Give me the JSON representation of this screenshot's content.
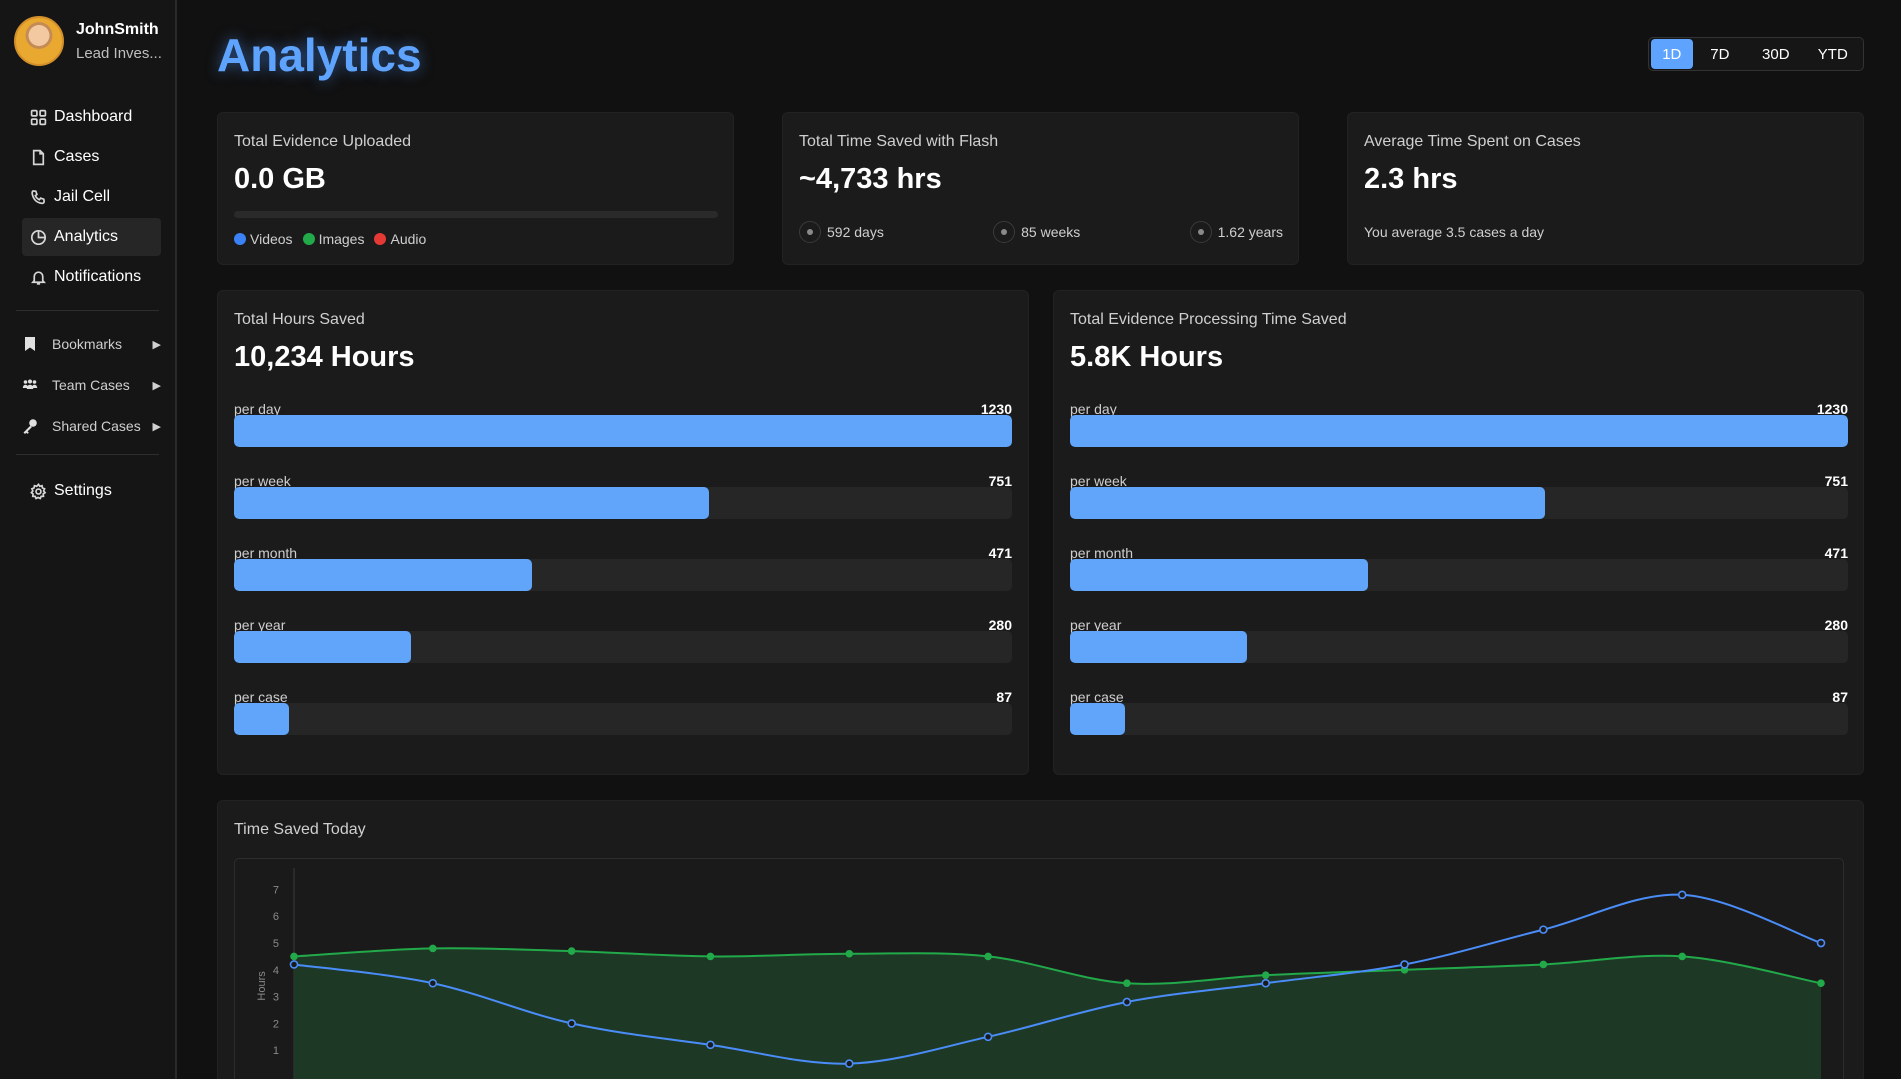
{
  "profile": {
    "name": "JohnSmith",
    "role": "Lead Inves..."
  },
  "nav": [
    {
      "label": "Dashboard",
      "icon": "grid-icon"
    },
    {
      "label": "Cases",
      "icon": "document-icon"
    },
    {
      "label": "Jail Cell",
      "icon": "phone-icon"
    },
    {
      "label": "Analytics",
      "icon": "pie-chart-icon",
      "active": true
    },
    {
      "label": "Notifications",
      "icon": "bell-icon"
    }
  ],
  "groups": [
    {
      "label": "Bookmarks",
      "icon": "bookmark-icon"
    },
    {
      "label": "Team Cases",
      "icon": "team-icon"
    },
    {
      "label": "Shared Cases",
      "icon": "key-icon"
    }
  ],
  "settings": {
    "label": "Settings",
    "icon": "gear-icon"
  },
  "page_title": "Analytics",
  "ranges": {
    "options": [
      "1D",
      "7D",
      "30D",
      "YTD"
    ],
    "selected": "1D"
  },
  "cards": {
    "evidence": {
      "title": "Total Evidence Uploaded",
      "value": "0.0 GB",
      "progress": 0,
      "legend": [
        {
          "label": "Videos",
          "color": "#3b82f6"
        },
        {
          "label": "Images",
          "color": "#22a94a"
        },
        {
          "label": "Audio",
          "color": "#e53935"
        }
      ]
    },
    "time_saved": {
      "title": "Total Time Saved with Flash",
      "value": "~4,733 hrs",
      "units": [
        "592 days",
        "85 weeks",
        "1.62 years"
      ]
    },
    "average": {
      "title": "Average Time Spent on Cases",
      "value": "2.3 hrs",
      "note": "You average 3.5 cases a day"
    }
  },
  "hours_panel": {
    "title": "Total Hours Saved",
    "value": "10,234 Hours",
    "rows": [
      {
        "label": "per day",
        "value": "1230",
        "num": 1230
      },
      {
        "label": "per week",
        "value": "751",
        "num": 751
      },
      {
        "label": "per month",
        "value": "471",
        "num": 471
      },
      {
        "label": "per year",
        "value": "280",
        "num": 280
      },
      {
        "label": "per case",
        "value": "87",
        "num": 87
      }
    ]
  },
  "processing_panel": {
    "title": "Total Evidence Processing Time Saved",
    "value": "5.8K Hours",
    "rows": [
      {
        "label": "per day",
        "value": "1230",
        "num": 1230
      },
      {
        "label": "per week",
        "value": "751",
        "num": 751
      },
      {
        "label": "per month",
        "value": "471",
        "num": 471
      },
      {
        "label": "per year",
        "value": "280",
        "num": 280
      },
      {
        "label": "per case",
        "value": "87",
        "num": 87
      }
    ]
  },
  "chart_panel": {
    "title": "Time Saved Today"
  },
  "chart_data": {
    "type": "line",
    "title": "Time Saved Today",
    "ylabel": "Hours",
    "yticks": [
      1,
      2,
      3,
      4,
      5,
      6,
      7
    ],
    "ylim": [
      0,
      7.8
    ],
    "x": [
      0,
      1,
      2,
      3,
      4,
      5,
      6,
      7,
      8,
      9,
      10,
      11
    ],
    "series": [
      {
        "color": "#22a94a",
        "fill": true,
        "values": [
          4.5,
          4.8,
          4.7,
          4.5,
          4.6,
          4.5,
          3.5,
          3.8,
          4.0,
          4.2,
          4.5,
          3.5
        ]
      },
      {
        "color": "#4a8df8",
        "fill": false,
        "values": [
          4.2,
          3.5,
          2.0,
          1.2,
          0.5,
          1.5,
          2.8,
          3.5,
          4.2,
          5.5,
          6.8,
          5.0
        ]
      }
    ],
    "grid": false,
    "legend": "none"
  }
}
